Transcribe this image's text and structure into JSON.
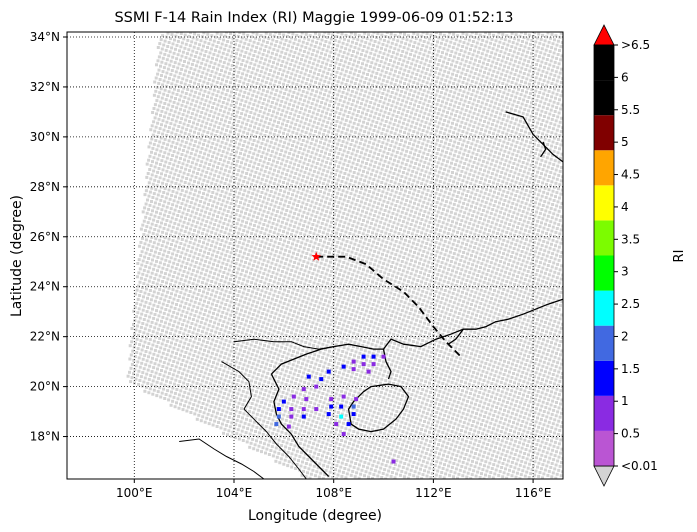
{
  "title": "SSMI F-14 Rain Index (RI) Maggie 1999-06-09 01:52:13",
  "xlabel": "Longitude (degree)",
  "ylabel": "Latitude (degree)",
  "colorbar_label": "RI",
  "colors": {
    "swath": "#d3d3d3",
    "grid": "#000000",
    "coast": "#000000",
    "star": "#ff0000"
  },
  "chart_data": {
    "type": "heatmap",
    "projection": "plate-carree",
    "xlim": [
      97.3,
      117.2
    ],
    "ylim": [
      16.3,
      34.2
    ],
    "x_ticks": [
      {
        "value": 100,
        "label": "100°E"
      },
      {
        "value": 104,
        "label": "104°E"
      },
      {
        "value": 108,
        "label": "108°E"
      },
      {
        "value": 112,
        "label": "112°E"
      },
      {
        "value": 116,
        "label": "116°E"
      }
    ],
    "y_ticks": [
      {
        "value": 18,
        "label": "18°N"
      },
      {
        "value": 20,
        "label": "20°N"
      },
      {
        "value": 22,
        "label": "22°N"
      },
      {
        "value": 24,
        "label": "24°N"
      },
      {
        "value": 26,
        "label": "26°N"
      },
      {
        "value": 28,
        "label": "28°N"
      },
      {
        "value": 30,
        "label": "30°N"
      },
      {
        "value": 32,
        "label": "32°N"
      },
      {
        "value": 34,
        "label": "34°N"
      }
    ],
    "grid": true,
    "swath_corners": [
      [
        101.0,
        34.2
      ],
      [
        117.2,
        34.2
      ],
      [
        117.2,
        16.3
      ],
      [
        107.0,
        16.3
      ],
      [
        99.7,
        20.2
      ]
    ],
    "colorbar": {
      "bins": [
        {
          "label": "<0.01",
          "color": "#d3d3d3"
        },
        {
          "label": "0.5",
          "color": "#ba55d3"
        },
        {
          "label": "1",
          "color": "#8a2be2"
        },
        {
          "label": "1.5",
          "color": "#0000ff"
        },
        {
          "label": "2",
          "color": "#4169e1"
        },
        {
          "label": "2.5",
          "color": "#00ffff"
        },
        {
          "label": "3",
          "color": "#00ff00"
        },
        {
          "label": "3.5",
          "color": "#7cfc00"
        },
        {
          "label": "4",
          "color": "#ffff00"
        },
        {
          "label": "4.5",
          "color": "#ffa500"
        },
        {
          "label": "5",
          "color": "#800000"
        },
        {
          "label": "5.5",
          "color": "#000000"
        },
        {
          "label": "6",
          "color": "#000000"
        },
        {
          "label": ">6.5",
          "color": "#ff0000"
        }
      ],
      "tick_labels": [
        "<0.01",
        "0.5",
        "1",
        "1.5",
        "2",
        "2.5",
        "3",
        "3.5",
        "4",
        "4.5",
        "5",
        "5.5",
        "6",
        ">6.5"
      ]
    },
    "storm_track": [
      [
        107.3,
        25.2
      ],
      [
        108.5,
        25.2
      ],
      [
        109.3,
        24.9
      ],
      [
        110.0,
        24.3
      ],
      [
        110.8,
        23.8
      ],
      [
        111.4,
        23.2
      ],
      [
        112.0,
        22.4
      ],
      [
        112.5,
        21.8
      ],
      [
        113.1,
        21.2
      ]
    ],
    "storm_position": [
      107.3,
      25.2
    ],
    "rain_cells": [
      {
        "lon": 109.2,
        "lat": 21.2,
        "ri": 1.2
      },
      {
        "lon": 109.6,
        "lat": 21.2,
        "ri": 1.0
      },
      {
        "lon": 110.0,
        "lat": 21.2,
        "ri": 0.7
      },
      {
        "lon": 108.8,
        "lat": 21.0,
        "ri": 0.9
      },
      {
        "lon": 109.2,
        "lat": 20.9,
        "ri": 0.6
      },
      {
        "lon": 109.6,
        "lat": 20.9,
        "ri": 0.6
      },
      {
        "lon": 108.4,
        "lat": 20.8,
        "ri": 1.1
      },
      {
        "lon": 108.8,
        "lat": 20.7,
        "ri": 0.6
      },
      {
        "lon": 109.4,
        "lat": 20.6,
        "ri": 0.5
      },
      {
        "lon": 107.8,
        "lat": 20.6,
        "ri": 1.3
      },
      {
        "lon": 107.5,
        "lat": 20.3,
        "ri": 1.0
      },
      {
        "lon": 107.0,
        "lat": 20.4,
        "ri": 1.2
      },
      {
        "lon": 107.3,
        "lat": 20.0,
        "ri": 0.9
      },
      {
        "lon": 106.8,
        "lat": 19.9,
        "ri": 0.7
      },
      {
        "lon": 106.4,
        "lat": 19.6,
        "ri": 0.6
      },
      {
        "lon": 106.9,
        "lat": 19.5,
        "ri": 0.9
      },
      {
        "lon": 106.0,
        "lat": 19.4,
        "ri": 1.1
      },
      {
        "lon": 105.8,
        "lat": 19.1,
        "ri": 1.4
      },
      {
        "lon": 106.3,
        "lat": 19.1,
        "ri": 0.8
      },
      {
        "lon": 106.8,
        "lat": 19.1,
        "ri": 0.7
      },
      {
        "lon": 107.3,
        "lat": 19.1,
        "ri": 0.6
      },
      {
        "lon": 105.8,
        "lat": 18.8,
        "ri": 1.6
      },
      {
        "lon": 106.3,
        "lat": 18.8,
        "ri": 0.7
      },
      {
        "lon": 106.8,
        "lat": 18.8,
        "ri": 1.1
      },
      {
        "lon": 105.7,
        "lat": 18.5,
        "ri": 1.8
      },
      {
        "lon": 106.2,
        "lat": 18.4,
        "ri": 0.5
      },
      {
        "lon": 107.9,
        "lat": 19.5,
        "ri": 0.8
      },
      {
        "lon": 108.4,
        "lat": 19.6,
        "ri": 0.6
      },
      {
        "lon": 108.9,
        "lat": 19.5,
        "ri": 0.7
      },
      {
        "lon": 107.9,
        "lat": 19.2,
        "ri": 1.4
      },
      {
        "lon": 108.3,
        "lat": 19.2,
        "ri": 1.0
      },
      {
        "lon": 108.8,
        "lat": 19.2,
        "ri": 1.9
      },
      {
        "lon": 107.8,
        "lat": 18.9,
        "ri": 1.2
      },
      {
        "lon": 108.3,
        "lat": 18.8,
        "ri": 2.2
      },
      {
        "lon": 108.8,
        "lat": 18.9,
        "ri": 1.3
      },
      {
        "lon": 108.1,
        "lat": 18.5,
        "ri": 0.8
      },
      {
        "lon": 108.6,
        "lat": 18.5,
        "ri": 1.1
      },
      {
        "lon": 108.4,
        "lat": 18.1,
        "ri": 0.6
      },
      {
        "lon": 110.4,
        "lat": 17.0,
        "ri": 0.5
      }
    ],
    "coastlines": [
      [
        [
          105.5,
          20.5
        ],
        [
          105.9,
          20.9
        ],
        [
          106.4,
          21.1
        ],
        [
          106.9,
          21.3
        ],
        [
          107.5,
          21.5
        ],
        [
          108.0,
          21.6
        ],
        [
          108.6,
          21.7
        ],
        [
          109.1,
          21.6
        ],
        [
          109.6,
          21.5
        ],
        [
          110.0,
          21.5
        ],
        [
          110.3,
          21.9
        ],
        [
          110.8,
          21.7
        ],
        [
          111.5,
          21.6
        ],
        [
          112.1,
          21.9
        ],
        [
          112.7,
          22.1
        ],
        [
          113.2,
          22.3
        ],
        [
          113.7,
          22.3
        ],
        [
          114.1,
          22.4
        ],
        [
          114.5,
          22.6
        ],
        [
          115.0,
          22.7
        ],
        [
          115.6,
          22.9
        ],
        [
          116.1,
          23.1
        ],
        [
          116.6,
          23.3
        ],
        [
          117.2,
          23.5
        ]
      ],
      [
        [
          113.2,
          22.3
        ],
        [
          112.9,
          21.9
        ],
        [
          112.6,
          21.7
        ]
      ],
      [
        [
          110.0,
          21.5
        ],
        [
          110.1,
          21.0
        ],
        [
          110.3,
          20.6
        ],
        [
          110.2,
          20.3
        ]
      ],
      [
        [
          105.5,
          20.5
        ],
        [
          105.8,
          19.9
        ],
        [
          105.6,
          19.4
        ],
        [
          105.7,
          18.9
        ],
        [
          105.9,
          18.5
        ],
        [
          106.3,
          18.1
        ],
        [
          106.6,
          17.6
        ],
        [
          107.0,
          17.2
        ],
        [
          107.4,
          16.8
        ],
        [
          107.8,
          16.4
        ]
      ],
      [
        [
          109.5,
          20.0
        ],
        [
          110.2,
          20.1
        ],
        [
          110.7,
          20.0
        ],
        [
          111.0,
          19.6
        ],
        [
          110.8,
          19.1
        ],
        [
          110.5,
          18.7
        ],
        [
          110.0,
          18.3
        ],
        [
          109.5,
          18.2
        ],
        [
          109.0,
          18.3
        ],
        [
          108.7,
          18.5
        ],
        [
          108.6,
          19.1
        ],
        [
          108.8,
          19.4
        ],
        [
          109.2,
          19.8
        ],
        [
          109.5,
          20.0
        ]
      ],
      [
        [
          114.9,
          31.0
        ],
        [
          115.6,
          30.8
        ],
        [
          116.0,
          30.1
        ],
        [
          116.5,
          29.6
        ],
        [
          116.8,
          29.3
        ],
        [
          117.2,
          29.0
        ]
      ],
      [
        [
          116.4,
          29.8
        ],
        [
          116.5,
          29.5
        ],
        [
          116.3,
          29.2
        ]
      ]
    ],
    "borders": [
      [
        [
          104.0,
          21.8
        ],
        [
          104.8,
          21.9
        ],
        [
          105.6,
          21.8
        ],
        [
          106.3,
          21.8
        ],
        [
          106.8,
          21.6
        ],
        [
          107.4,
          21.5
        ],
        [
          108.0,
          21.6
        ]
      ],
      [
        [
          103.5,
          21.0
        ],
        [
          104.2,
          20.6
        ],
        [
          104.6,
          20.2
        ],
        [
          104.7,
          19.6
        ],
        [
          104.4,
          19.1
        ],
        [
          104.9,
          18.6
        ],
        [
          105.3,
          18.2
        ],
        [
          105.7,
          17.7
        ],
        [
          106.2,
          17.2
        ],
        [
          106.6,
          16.7
        ],
        [
          106.9,
          16.3
        ]
      ],
      [
        [
          101.8,
          17.8
        ],
        [
          102.6,
          17.9
        ],
        [
          103.2,
          17.5
        ],
        [
          103.7,
          17.2
        ],
        [
          104.3,
          16.9
        ],
        [
          104.8,
          16.6
        ],
        [
          105.2,
          16.3
        ]
      ]
    ]
  }
}
